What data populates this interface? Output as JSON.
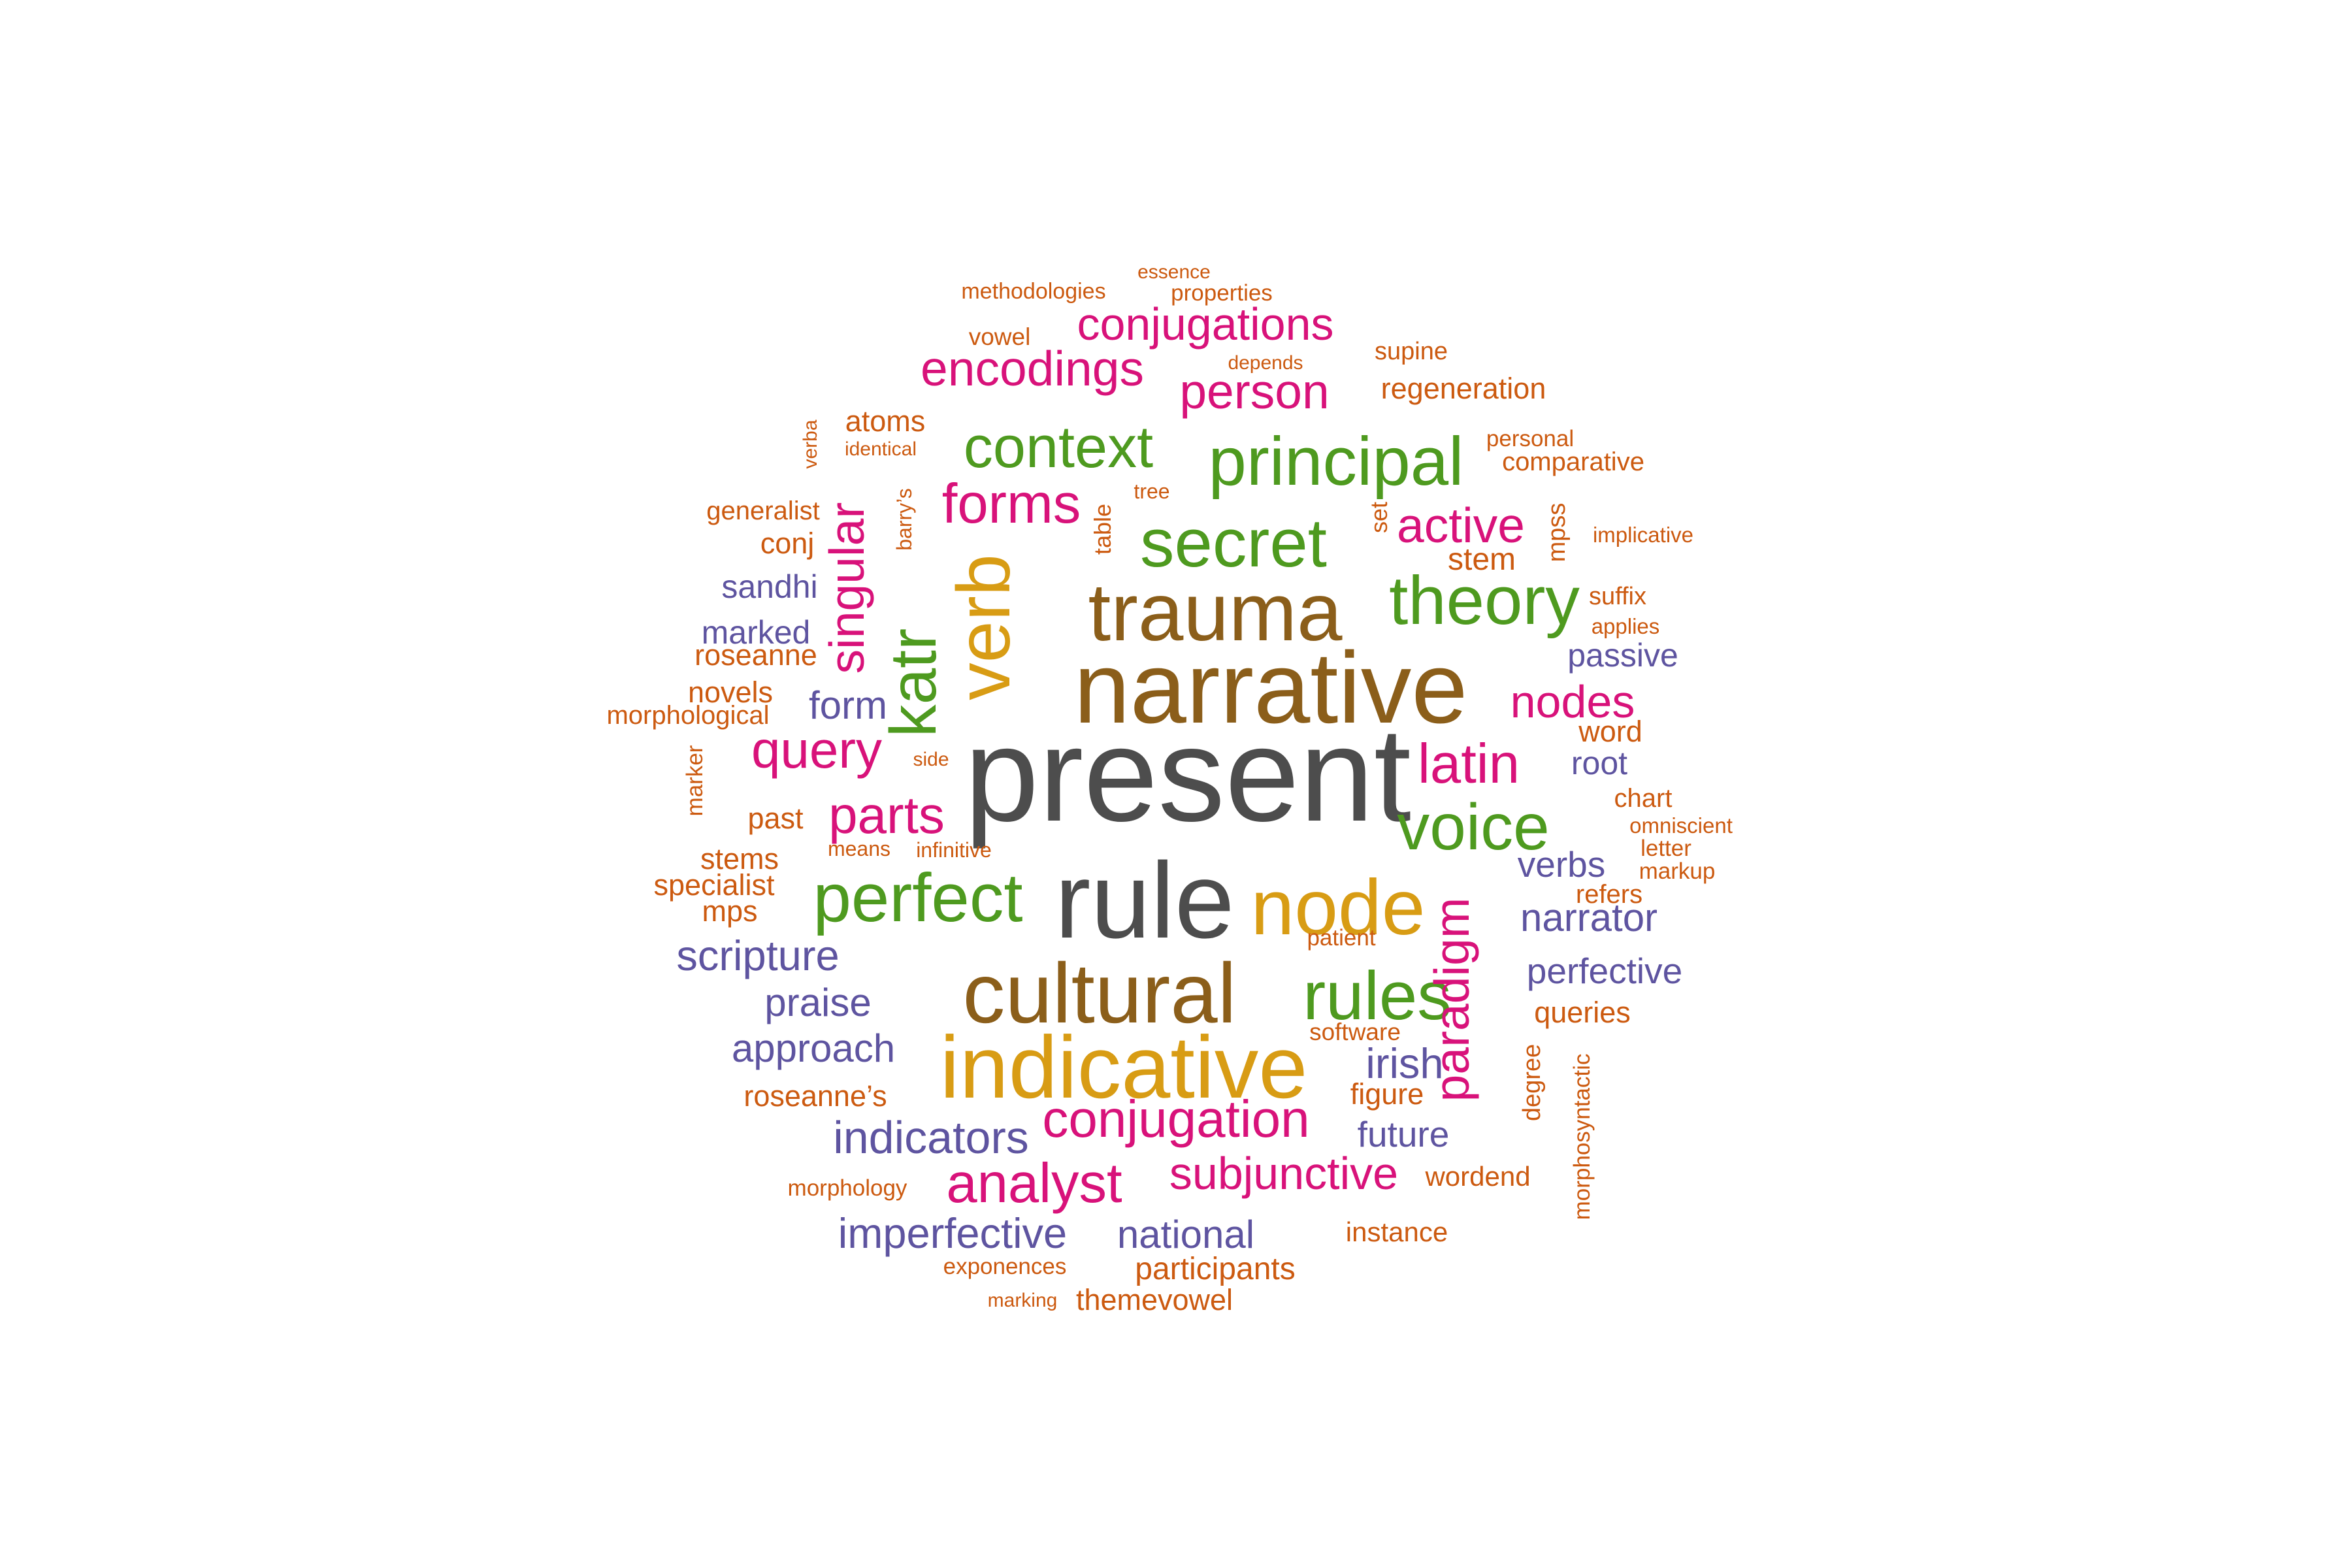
{
  "colors": {
    "gray": "#4d4d4d",
    "brown": "#8b5e1a",
    "gold": "#d89c14",
    "green": "#4e9a1f",
    "magenta": "#d8127a",
    "purple": "#5e54a0",
    "orange": "#cc5a10"
  },
  "words": [
    {
      "text": "present",
      "color": "gray"
    },
    {
      "text": "narrative",
      "color": "brown"
    },
    {
      "text": "rule",
      "color": "gray"
    },
    {
      "text": "trauma",
      "color": "brown"
    },
    {
      "text": "cultural",
      "color": "brown"
    },
    {
      "text": "indicative",
      "color": "gold"
    },
    {
      "text": "node",
      "color": "gold"
    },
    {
      "text": "verb",
      "color": "gold"
    },
    {
      "text": "principal",
      "color": "green"
    },
    {
      "text": "secret",
      "color": "green"
    },
    {
      "text": "theory",
      "color": "green"
    },
    {
      "text": "context",
      "color": "green"
    },
    {
      "text": "perfect",
      "color": "green"
    },
    {
      "text": "rules",
      "color": "green"
    },
    {
      "text": "voice",
      "color": "green"
    },
    {
      "text": "katr",
      "color": "green"
    },
    {
      "text": "conjugations",
      "color": "magenta"
    },
    {
      "text": "encodings",
      "color": "magenta"
    },
    {
      "text": "person",
      "color": "magenta"
    },
    {
      "text": "forms",
      "color": "magenta"
    },
    {
      "text": "active",
      "color": "magenta"
    },
    {
      "text": "singular",
      "color": "magenta"
    },
    {
      "text": "query",
      "color": "magenta"
    },
    {
      "text": "parts",
      "color": "magenta"
    },
    {
      "text": "latin",
      "color": "magenta"
    },
    {
      "text": "nodes",
      "color": "magenta"
    },
    {
      "text": "paradigm",
      "color": "magenta"
    },
    {
      "text": "conjugation",
      "color": "magenta"
    },
    {
      "text": "analyst",
      "color": "magenta"
    },
    {
      "text": "subjunctive",
      "color": "magenta"
    },
    {
      "text": "sandhi",
      "color": "purple"
    },
    {
      "text": "marked",
      "color": "purple"
    },
    {
      "text": "form",
      "color": "purple"
    },
    {
      "text": "passive",
      "color": "purple"
    },
    {
      "text": "root",
      "color": "purple"
    },
    {
      "text": "verbs",
      "color": "purple"
    },
    {
      "text": "narrator",
      "color": "purple"
    },
    {
      "text": "perfective",
      "color": "purple"
    },
    {
      "text": "scripture",
      "color": "purple"
    },
    {
      "text": "praise",
      "color": "purple"
    },
    {
      "text": "approach",
      "color": "purple"
    },
    {
      "text": "irish",
      "color": "purple"
    },
    {
      "text": "future",
      "color": "purple"
    },
    {
      "text": "indicators",
      "color": "purple"
    },
    {
      "text": "imperfective",
      "color": "purple"
    },
    {
      "text": "national",
      "color": "purple"
    },
    {
      "text": "essence",
      "color": "orange"
    },
    {
      "text": "methodologies",
      "color": "orange"
    },
    {
      "text": "properties",
      "color": "orange"
    },
    {
      "text": "vowel",
      "color": "orange"
    },
    {
      "text": "depends",
      "color": "orange"
    },
    {
      "text": "supine",
      "color": "orange"
    },
    {
      "text": "regeneration",
      "color": "orange"
    },
    {
      "text": "verba",
      "color": "orange"
    },
    {
      "text": "atoms",
      "color": "orange"
    },
    {
      "text": "identical",
      "color": "orange"
    },
    {
      "text": "personal",
      "color": "orange"
    },
    {
      "text": "comparative",
      "color": "orange"
    },
    {
      "text": "generalist",
      "color": "orange"
    },
    {
      "text": "barry’s",
      "color": "orange"
    },
    {
      "text": "tree",
      "color": "orange"
    },
    {
      "text": "table",
      "color": "orange"
    },
    {
      "text": "set",
      "color": "orange"
    },
    {
      "text": "mpss",
      "color": "orange"
    },
    {
      "text": "implicative",
      "color": "orange"
    },
    {
      "text": "conj",
      "color": "orange"
    },
    {
      "text": "stem",
      "color": "orange"
    },
    {
      "text": "suffix",
      "color": "orange"
    },
    {
      "text": "applies",
      "color": "orange"
    },
    {
      "text": "roseanne",
      "color": "orange"
    },
    {
      "text": "novels",
      "color": "orange"
    },
    {
      "text": "morphological",
      "color": "orange"
    },
    {
      "text": "word",
      "color": "orange"
    },
    {
      "text": "marker",
      "color": "orange"
    },
    {
      "text": "side",
      "color": "orange"
    },
    {
      "text": "chart",
      "color": "orange"
    },
    {
      "text": "past",
      "color": "orange"
    },
    {
      "text": "omniscient",
      "color": "orange"
    },
    {
      "text": "letter",
      "color": "orange"
    },
    {
      "text": "stems",
      "color": "orange"
    },
    {
      "text": "means",
      "color": "orange"
    },
    {
      "text": "infinitive",
      "color": "orange"
    },
    {
      "text": "markup",
      "color": "orange"
    },
    {
      "text": "specialist",
      "color": "orange"
    },
    {
      "text": "refers",
      "color": "orange"
    },
    {
      "text": "mps",
      "color": "orange"
    },
    {
      "text": "patient",
      "color": "orange"
    },
    {
      "text": "queries",
      "color": "orange"
    },
    {
      "text": "software",
      "color": "orange"
    },
    {
      "text": "morphosyntactic",
      "color": "orange"
    },
    {
      "text": "degree",
      "color": "orange"
    },
    {
      "text": "roseanne’s",
      "color": "orange"
    },
    {
      "text": "figure",
      "color": "orange"
    },
    {
      "text": "wordend",
      "color": "orange"
    },
    {
      "text": "morphology",
      "color": "orange"
    },
    {
      "text": "instance",
      "color": "orange"
    },
    {
      "text": "exponences",
      "color": "orange"
    },
    {
      "text": "participants",
      "color": "orange"
    },
    {
      "text": "marking",
      "color": "orange"
    },
    {
      "text": "themevowel",
      "color": "orange"
    }
  ]
}
